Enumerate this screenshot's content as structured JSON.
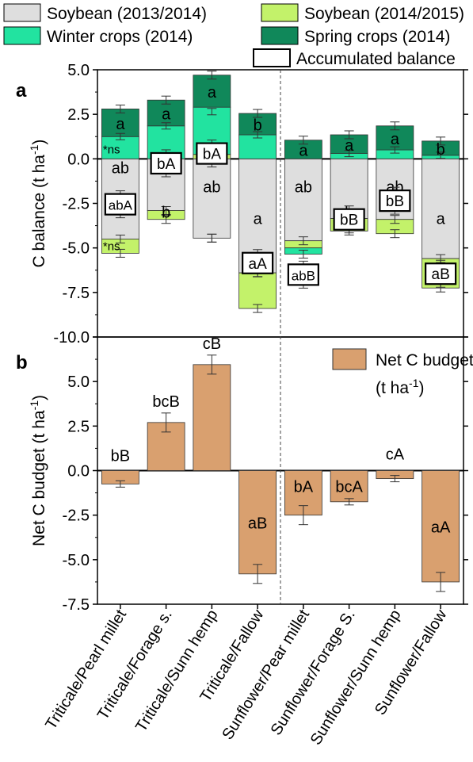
{
  "legend": {
    "items": [
      {
        "label": "Soybean (2013/2014)",
        "color": "#dedede"
      },
      {
        "label": "Soybean (2014/2015)",
        "color": "#c3f26a"
      },
      {
        "label": "Winter crops (2014)",
        "color": "#22e3a0"
      },
      {
        "label": "Spring crops (2014)",
        "color": "#10885a"
      },
      {
        "label": "Accumulated balance",
        "color": "#ffffff"
      }
    ]
  },
  "chart_data": [
    {
      "panel": "a",
      "type": "bar",
      "stacked": true,
      "ylabel_main": "C balance (t ha",
      "ylabel_sup": "-1",
      "ylabel_end": ")",
      "ylim": [
        -10,
        5
      ],
      "yticks": [
        "5.0",
        "2.5",
        "0.0",
        "-2.5",
        "-5.0",
        "-7.5",
        "-10.0"
      ],
      "categories": [
        "Triticale/Pearl millet",
        "Triticale/Forage s.",
        "Triticale/Sunn hemp",
        "Triticale/Fallow",
        "Sunflower/Pear millet",
        "Sunflower/Forage S.",
        "Sunflower/Sunn hemp",
        "Sunflower/Fallow"
      ],
      "series": [
        {
          "name": "Soybean (2013/2014)",
          "values": [
            -4.5,
            -2.9,
            -4.45,
            -6.4,
            -4.6,
            -3.35,
            -3.4,
            -5.6
          ]
        },
        {
          "name": "Soybean (2014/2015)",
          "values": [
            -0.8,
            -0.5,
            0.25,
            -2.0,
            -0.4,
            -0.7,
            -0.8,
            -1.65
          ]
        },
        {
          "name": "Winter crops (2014)",
          "values": [
            1.25,
            1.85,
            2.65,
            1.35,
            -0.35,
            0.3,
            0.5,
            0.2
          ]
        },
        {
          "name": "Spring crops (2014)",
          "values": [
            1.55,
            1.45,
            1.8,
            1.2,
            1.05,
            1.05,
            1.35,
            0.8
          ]
        }
      ],
      "accumulated_balance": [
        -2.55,
        -0.25,
        0.3,
        -5.85,
        -6.5,
        -3.4,
        -2.35,
        -6.45
      ],
      "stack_labels": {
        "spring": [
          "a",
          "a",
          "a",
          "b",
          "a",
          "a",
          "a",
          "b"
        ],
        "soy1314": [
          "ab",
          "b",
          "ab",
          "a",
          "ab",
          "b",
          "ab",
          "a"
        ],
        "soy1314_extra": [
          "ab",
          "",
          "",
          "",
          "",
          "",
          "",
          ""
        ],
        "balance": [
          "abA",
          "bA",
          "bA",
          "aA",
          "abB",
          "bB",
          "bB",
          "aB"
        ]
      },
      "annotations": [
        "*ns",
        "*ns"
      ]
    },
    {
      "panel": "b",
      "type": "bar",
      "ylabel_main": "Net C budget (t ha",
      "ylabel_sup": "-1",
      "ylabel_end": ")",
      "ylim": [
        -7.5,
        7.5
      ],
      "yticks": [
        "7.5",
        "5.0",
        "2.5",
        "0.0",
        "-2.5",
        "-5.0",
        "-7.5"
      ],
      "categories": [
        "Triticale/Pearl millet",
        "Triticale/Forage s.",
        "Triticale/Sunn hemp",
        "Triticale/Fallow",
        "Sunflower/Pear millet",
        "Sunflower/Forage S.",
        "Sunflower/Sunn hemp",
        "Sunflower/Fallow"
      ],
      "series": [
        {
          "name": "Net C budget",
          "values": [
            -0.75,
            2.7,
            5.95,
            -5.8,
            -2.5,
            -1.75,
            -0.45,
            -6.25
          ]
        }
      ],
      "bar_labels": [
        "bB",
        "bcB",
        "cB",
        "aB",
        "bA",
        "bcA",
        "cA",
        "aA"
      ],
      "legend_line1": "Net C budget",
      "legend_line2_main": "(t ha",
      "legend_line2_sup": "-1",
      "legend_line2_end": ")",
      "color": "#d9a06f"
    }
  ]
}
